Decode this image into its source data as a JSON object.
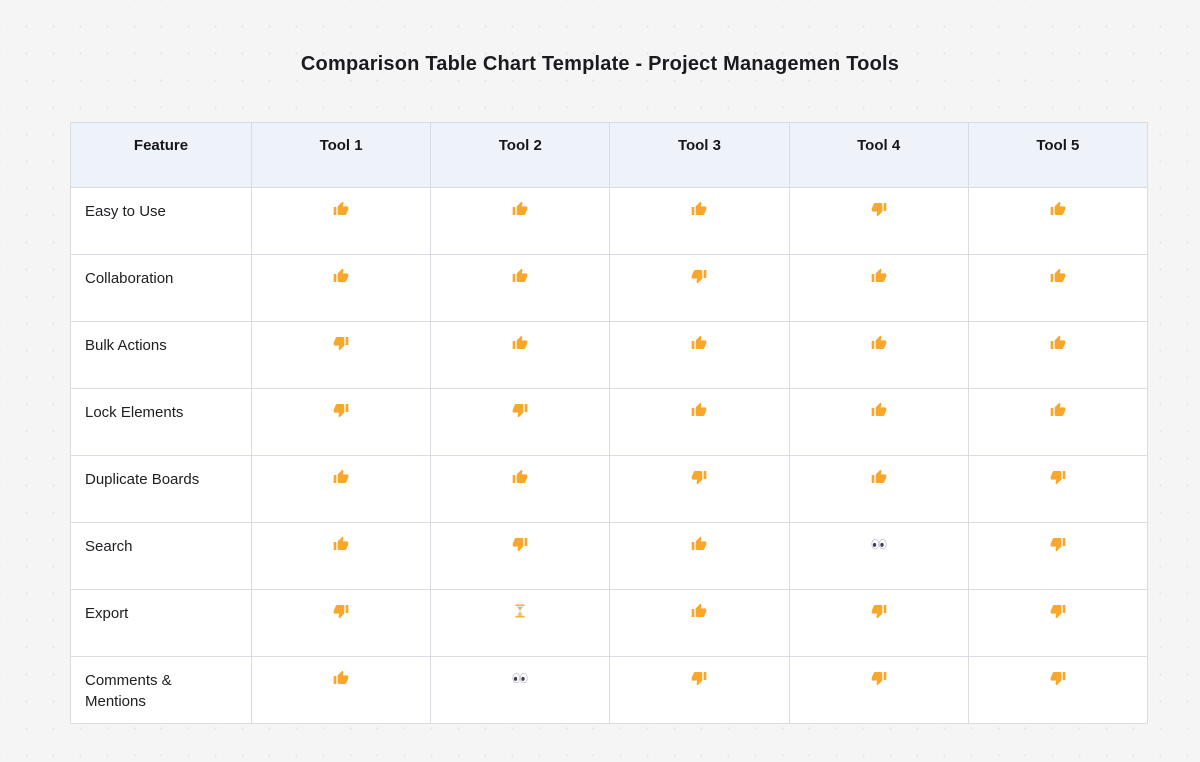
{
  "page": {
    "title": "Comparison Table Chart Template - Project Managemen Tools"
  },
  "chart_data": {
    "type": "table",
    "title": "Comparison Table Chart Template - Project Managemen Tools",
    "columns": [
      "Feature",
      "Tool 1",
      "Tool 2",
      "Tool 3",
      "Tool 4",
      "Tool 5"
    ],
    "rows": [
      {
        "feature": "Easy to Use",
        "values": [
          "thumbs-up",
          "thumbs-up",
          "thumbs-up",
          "thumbs-down",
          "thumbs-up"
        ]
      },
      {
        "feature": "Collaboration",
        "values": [
          "thumbs-up",
          "thumbs-up",
          "thumbs-down",
          "thumbs-up",
          "thumbs-up"
        ]
      },
      {
        "feature": "Bulk Actions",
        "values": [
          "thumbs-down",
          "thumbs-up",
          "thumbs-up",
          "thumbs-up",
          "thumbs-up"
        ]
      },
      {
        "feature": "Lock Elements",
        "values": [
          "thumbs-down",
          "thumbs-down",
          "thumbs-up",
          "thumbs-up",
          "thumbs-up"
        ]
      },
      {
        "feature": "Duplicate Boards",
        "values": [
          "thumbs-up",
          "thumbs-up",
          "thumbs-down",
          "thumbs-up",
          "thumbs-down"
        ]
      },
      {
        "feature": "Search",
        "values": [
          "thumbs-up",
          "thumbs-down",
          "thumbs-up",
          "eyes",
          "thumbs-down"
        ]
      },
      {
        "feature": "Export",
        "values": [
          "thumbs-down",
          "hourglass",
          "thumbs-up",
          "thumbs-down",
          "thumbs-down"
        ]
      },
      {
        "feature": "Comments & Mentions",
        "values": [
          "thumbs-up",
          "eyes",
          "thumbs-down",
          "thumbs-down",
          "thumbs-down"
        ]
      }
    ],
    "icon_glyphs": {
      "thumbs-up": "👍",
      "thumbs-down": "👎",
      "eyes": "👀",
      "hourglass": "⌛"
    }
  },
  "colors": {
    "canvas_bg": "#f5f5f5",
    "header_bg": "#eef3fa",
    "cell_bg": "#ffffff",
    "border": "#d9dde3",
    "text": "#1b1b1f",
    "thumb_orange": "#f9a72b",
    "hourglass_gold": "#f2b233"
  }
}
